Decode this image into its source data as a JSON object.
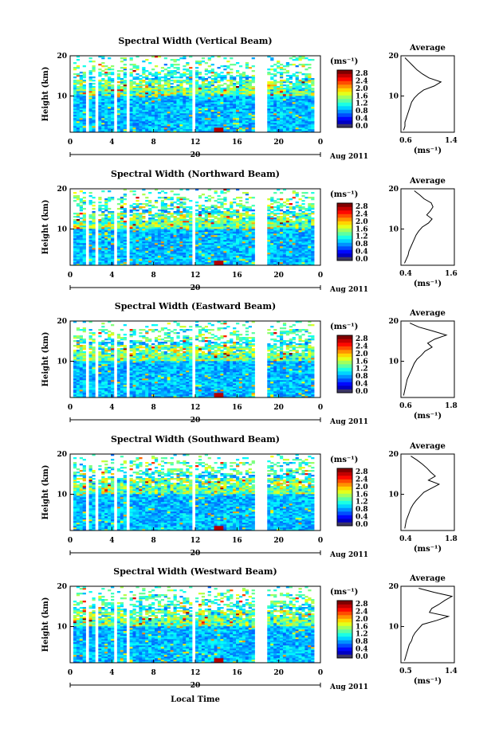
{
  "chart_data": [
    {
      "type": "heatmap",
      "title": "Spectral Width (Vertical Beam)",
      "ylabel": "Height (km)",
      "yticks": [
        "20",
        "10"
      ],
      "xticks": [
        "0",
        "4",
        "8",
        "12",
        "16",
        "20",
        "0"
      ],
      "date_label": "20",
      "month_label": "Aug 2011",
      "xlim": [
        0,
        24
      ],
      "ylim": [
        1,
        20
      ],
      "colorbar": {
        "unit": "(ms⁻¹)",
        "ticks": [
          "2.8",
          "2.4",
          "2.0",
          "1.6",
          "1.2",
          "0.8",
          "0.4",
          "0.0"
        ],
        "range": [
          0,
          3
        ]
      },
      "gaps": [
        [
          0,
          0.2
        ],
        [
          1.5,
          1.9
        ],
        [
          2.4,
          2.55
        ],
        [
          4.1,
          4.4
        ],
        [
          5.4,
          5.8
        ],
        [
          11.6,
          11.9
        ],
        [
          17.8,
          18.9
        ],
        [
          20.9,
          21.1
        ],
        [
          23.5,
          24
        ]
      ],
      "profile": {
        "title": "Average",
        "xticks": [
          "0.6",
          "1.4"
        ],
        "yticks": [
          "20",
          "10"
        ],
        "xlim": [
          0.6,
          1.4
        ],
        "xlabel": "(ms⁻¹)",
        "heights": [
          1.5,
          2.5,
          3.5,
          4.5,
          5.5,
          6.5,
          7.5,
          8.5,
          9.5,
          10.5,
          11.5,
          12.5,
          13.5,
          14.5,
          15.5,
          16.5,
          17.5,
          18.5,
          19.5
        ],
        "values": [
          0.64,
          0.66,
          0.66,
          0.68,
          0.7,
          0.72,
          0.74,
          0.76,
          0.8,
          0.86,
          0.94,
          1.1,
          1.2,
          1.02,
          0.92,
          0.84,
          0.78,
          0.72,
          0.66
        ]
      }
    },
    {
      "type": "heatmap",
      "title": "Spectral Width (Northward Beam)",
      "ylabel": "Height (km)",
      "yticks": [
        "20",
        "10"
      ],
      "xticks": [
        "0",
        "4",
        "8",
        "12",
        "16",
        "20",
        "0"
      ],
      "date_label": "20",
      "month_label": "Aug 2011",
      "xlim": [
        0,
        24
      ],
      "ylim": [
        1,
        20
      ],
      "colorbar": {
        "unit": "(ms⁻¹)",
        "ticks": [
          "2.8",
          "2.4",
          "2.0",
          "1.6",
          "1.2",
          "0.8",
          "0.4",
          "0.0"
        ],
        "range": [
          0,
          3
        ]
      },
      "gaps": [
        [
          0,
          0.2
        ],
        [
          1.5,
          1.9
        ],
        [
          2.4,
          2.55
        ],
        [
          4.1,
          4.4
        ],
        [
          5.4,
          5.8
        ],
        [
          11.6,
          11.9
        ],
        [
          17.8,
          18.9
        ],
        [
          20.9,
          21.1
        ],
        [
          23.5,
          24
        ]
      ],
      "profile": {
        "title": "Average",
        "xticks": [
          "0.4",
          "1.6"
        ],
        "yticks": [
          "20",
          "10"
        ],
        "xlim": [
          0.4,
          1.6
        ],
        "xlabel": "(ms⁻¹)",
        "heights": [
          1.5,
          2.5,
          3.5,
          4.5,
          5.5,
          6.5,
          7.5,
          8.5,
          9.5,
          10.5,
          11.5,
          12.5,
          13.5,
          14.5,
          15.5,
          16.5,
          17.5,
          18.5,
          19.5
        ],
        "values": [
          0.48,
          0.52,
          0.56,
          0.58,
          0.62,
          0.66,
          0.7,
          0.74,
          0.8,
          0.88,
          1.02,
          1.1,
          0.98,
          1.06,
          1.12,
          1.08,
          0.92,
          0.82,
          0.7
        ]
      }
    },
    {
      "type": "heatmap",
      "title": "Spectral Width (Eastward Beam)",
      "ylabel": "Height (km)",
      "yticks": [
        "20",
        "10"
      ],
      "xticks": [
        "0",
        "4",
        "8",
        "12",
        "16",
        "20",
        "0"
      ],
      "date_label": "20",
      "month_label": "Aug 2011",
      "xlim": [
        0,
        24
      ],
      "ylim": [
        1,
        20
      ],
      "colorbar": {
        "unit": "(ms⁻¹)",
        "ticks": [
          "2.8",
          "2.4",
          "2.0",
          "1.6",
          "1.2",
          "0.8",
          "0.4",
          "0.0"
        ],
        "range": [
          0,
          3
        ]
      },
      "gaps": [
        [
          0,
          0.2
        ],
        [
          1.5,
          1.9
        ],
        [
          2.4,
          2.55
        ],
        [
          4.1,
          4.4
        ],
        [
          5.4,
          5.8
        ],
        [
          11.6,
          11.9
        ],
        [
          17.8,
          18.9
        ],
        [
          20.9,
          21.1
        ],
        [
          23.5,
          24
        ]
      ],
      "profile": {
        "title": "Average",
        "xticks": [
          "0.6",
          "1.8"
        ],
        "yticks": [
          "20",
          "10"
        ],
        "xlim": [
          0.6,
          1.8
        ],
        "xlabel": "(ms⁻¹)",
        "heights": [
          1.5,
          2.5,
          3.5,
          4.5,
          5.5,
          6.5,
          7.5,
          8.5,
          9.5,
          10.5,
          11.5,
          12.5,
          13.5,
          14.5,
          15.5,
          16.5,
          17.5,
          18.5,
          19.5
        ],
        "values": [
          0.66,
          0.68,
          0.7,
          0.72,
          0.74,
          0.78,
          0.82,
          0.86,
          0.9,
          0.96,
          1.06,
          1.14,
          1.3,
          1.2,
          1.36,
          1.62,
          1.32,
          1.0,
          0.8
        ]
      }
    },
    {
      "type": "heatmap",
      "title": "Spectral Width (Southward Beam)",
      "ylabel": "Height (km)",
      "yticks": [
        "20",
        "10"
      ],
      "xticks": [
        "0",
        "4",
        "8",
        "12",
        "16",
        "20",
        "0"
      ],
      "date_label": "20",
      "month_label": "Aug 2011",
      "xlim": [
        0,
        24
      ],
      "ylim": [
        1,
        20
      ],
      "colorbar": {
        "unit": "(ms⁻¹)",
        "ticks": [
          "2.8",
          "2.4",
          "2.0",
          "1.6",
          "1.2",
          "0.8",
          "0.4",
          "0.0"
        ],
        "range": [
          0,
          3
        ]
      },
      "gaps": [
        [
          0,
          0.2
        ],
        [
          1.5,
          1.9
        ],
        [
          2.4,
          2.55
        ],
        [
          4.1,
          4.4
        ],
        [
          5.4,
          5.8
        ],
        [
          11.6,
          11.9
        ],
        [
          17.8,
          18.9
        ],
        [
          20.9,
          21.1
        ],
        [
          23.5,
          24
        ]
      ],
      "profile": {
        "title": "Average",
        "xticks": [
          "0.4",
          "1.8"
        ],
        "yticks": [
          "20",
          "10"
        ],
        "xlim": [
          0.4,
          1.8
        ],
        "xlabel": "(ms⁻¹)",
        "heights": [
          1.5,
          2.5,
          3.5,
          4.5,
          5.5,
          6.5,
          7.5,
          8.5,
          9.5,
          10.5,
          11.5,
          12.5,
          13.5,
          14.5,
          15.5,
          16.5,
          17.5,
          18.5,
          19.5
        ],
        "values": [
          0.5,
          0.52,
          0.54,
          0.58,
          0.62,
          0.66,
          0.72,
          0.8,
          0.9,
          1.0,
          1.2,
          1.4,
          1.12,
          1.3,
          1.18,
          1.08,
          0.96,
          0.82,
          0.66
        ]
      }
    },
    {
      "type": "heatmap",
      "title": "Spectral Width (Westward Beam)",
      "ylabel": "Height (km)",
      "yticks": [
        "20",
        "10"
      ],
      "xticks": [
        "0",
        "4",
        "8",
        "12",
        "16",
        "20",
        "0"
      ],
      "date_label": "20",
      "month_label": "Aug 2011",
      "xlabel": "Local Time",
      "xlim": [
        0,
        24
      ],
      "ylim": [
        1,
        20
      ],
      "colorbar": {
        "unit": "(ms⁻¹)",
        "ticks": [
          "2.8",
          "2.4",
          "2.0",
          "1.6",
          "1.2",
          "0.8",
          "0.4",
          "0.0"
        ],
        "range": [
          0,
          3
        ]
      },
      "gaps": [
        [
          0,
          0.2
        ],
        [
          1.5,
          1.9
        ],
        [
          2.4,
          2.55
        ],
        [
          4.1,
          4.4
        ],
        [
          5.4,
          5.8
        ],
        [
          11.6,
          11.9
        ],
        [
          17.8,
          18.9
        ],
        [
          20.9,
          21.1
        ],
        [
          23.5,
          24
        ]
      ],
      "profile": {
        "title": "Average",
        "xticks": [
          "0.5",
          "1.4"
        ],
        "yticks": [
          "20",
          "10"
        ],
        "xlim": [
          0.5,
          1.4
        ],
        "xlabel": "(ms⁻¹)",
        "heights": [
          1.5,
          2.5,
          3.5,
          4.5,
          5.5,
          6.5,
          7.5,
          8.5,
          9.5,
          10.5,
          11.5,
          12.5,
          13.5,
          14.5,
          15.5,
          16.5,
          17.5,
          18.5,
          19.5
        ],
        "values": [
          0.56,
          0.58,
          0.6,
          0.62,
          0.64,
          0.68,
          0.7,
          0.74,
          0.8,
          0.86,
          1.1,
          1.3,
          0.98,
          1.02,
          1.14,
          1.24,
          1.36,
          1.06,
          0.8
        ]
      }
    }
  ]
}
